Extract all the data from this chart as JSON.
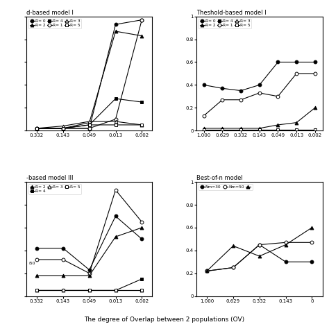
{
  "panels": {
    "tl": {
      "title": "d-based model I",
      "x_labels": [
        "0.332",
        "0.143",
        "0.049",
        "0.013",
        "0.002"
      ],
      "ylim": [
        0,
        1
      ],
      "show_y_labels": false,
      "legend_row1": [
        {
          "label": "R= 0",
          "marker": "o",
          "filled": true
        },
        {
          "label": "R= 2",
          "marker": "^",
          "filled": true
        },
        {
          "label": "R= 4",
          "marker": "s",
          "filled": true
        }
      ],
      "legend_row2": [
        {
          "label": "R= 1",
          "marker": "o",
          "filled": false
        },
        {
          "label": "R= 3",
          "marker": "^",
          "filled": false
        },
        {
          "label": "R= 5",
          "marker": "s",
          "filled": false
        }
      ],
      "series": [
        {
          "marker": "o",
          "filled": true,
          "data": [
            0.02,
            0.02,
            0.02,
            0.93,
            0.97
          ]
        },
        {
          "marker": "o",
          "filled": false,
          "data": [
            0.02,
            0.02,
            0.02,
            0.1,
            0.97
          ]
        },
        {
          "marker": "^",
          "filled": true,
          "data": [
            0.02,
            0.02,
            0.07,
            0.87,
            0.83
          ]
        },
        {
          "marker": "^",
          "filled": false,
          "data": [
            0.02,
            0.04,
            0.08,
            0.08,
            0.05
          ]
        },
        {
          "marker": "s",
          "filled": true,
          "data": [
            0.02,
            0.02,
            0.05,
            0.28,
            0.25
          ]
        },
        {
          "marker": "s",
          "filled": false,
          "data": [
            0.02,
            0.02,
            0.05,
            0.05,
            0.05
          ]
        }
      ]
    },
    "tr": {
      "title": "Theshold-based model I",
      "x_labels": [
        "1.000",
        "0.629",
        "0.332",
        "0.143",
        "0.049",
        "0.013",
        "0.002"
      ],
      "ylim": [
        0,
        1
      ],
      "show_y_labels": true,
      "legend_row1": [
        {
          "label": "R= 0",
          "marker": "o",
          "filled": true
        },
        {
          "label": "R= 2",
          "marker": "^",
          "filled": true
        },
        {
          "label": "R= 4",
          "marker": "s",
          "filled": true
        }
      ],
      "legend_row2": [
        {
          "label": "R= 1",
          "marker": "o",
          "filled": false
        },
        {
          "label": "R= 3",
          "marker": "^",
          "filled": false
        },
        {
          "label": "R= 5",
          "marker": "s",
          "filled": false
        }
      ],
      "series": [
        {
          "marker": "o",
          "filled": true,
          "data": [
            0.4,
            0.37,
            0.35,
            0.4,
            0.6,
            0.6,
            0.6
          ]
        },
        {
          "marker": "o",
          "filled": false,
          "data": [
            0.13,
            0.27,
            0.27,
            0.33,
            0.3,
            0.5,
            0.5
          ]
        },
        {
          "marker": "^",
          "filled": true,
          "data": [
            0.02,
            0.02,
            0.02,
            0.02,
            0.05,
            0.07,
            0.2
          ]
        },
        {
          "marker": "^",
          "filled": false,
          "data": [
            0.01,
            0.01,
            0.01,
            0.01,
            0.01,
            0.01,
            0.01
          ]
        },
        {
          "marker": "s",
          "filled": true,
          "data": [
            0.01,
            0.01,
            0.01,
            0.01,
            0.01,
            0.01,
            0.01
          ]
        },
        {
          "marker": "s",
          "filled": false,
          "data": [
            0.01,
            0.01,
            0.01,
            0.01,
            0.01,
            0.01,
            0.01
          ]
        }
      ]
    },
    "bl": {
      "title": "-based model III",
      "x_labels": [
        "0.332",
        "0.143",
        "0.049",
        "0.013",
        "0.002"
      ],
      "ylim": [
        0,
        1
      ],
      "show_y_labels": false,
      "legend_row1": [
        {
          "label": "R= 2",
          "marker": "^",
          "filled": true
        },
        {
          "label": "R= 4",
          "marker": "s",
          "filled": true
        }
      ],
      "legend_row2": [
        {
          "label": "R= 3",
          "marker": "^",
          "filled": false
        },
        {
          "label": "R= 5",
          "marker": "s",
          "filled": false
        }
      ],
      "legend_extra": "i50",
      "series": [
        {
          "marker": "o",
          "filled": true,
          "data": [
            0.42,
            0.42,
            0.23,
            0.7,
            0.5
          ]
        },
        {
          "marker": "o",
          "filled": false,
          "data": [
            0.32,
            0.32,
            0.2,
            0.93,
            0.65
          ]
        },
        {
          "marker": "^",
          "filled": true,
          "data": [
            0.18,
            0.18,
            0.18,
            0.52,
            0.6
          ]
        },
        {
          "marker": "^",
          "filled": false,
          "data": [
            0.05,
            0.05,
            0.05,
            0.05,
            0.05
          ]
        },
        {
          "marker": "s",
          "filled": true,
          "data": [
            0.05,
            0.05,
            0.05,
            0.05,
            0.15
          ]
        },
        {
          "marker": "s",
          "filled": false,
          "data": [
            0.05,
            0.05,
            0.05,
            0.05,
            0.05
          ]
        }
      ]
    },
    "br": {
      "title": "Best-of-n model",
      "x_labels": [
        "1.000",
        "0.629",
        "0.332",
        "0.143",
        "0"
      ],
      "ylim": [
        0,
        1
      ],
      "show_y_labels": true,
      "legend_row1": [
        {
          "label": "Nm=30",
          "marker": "o",
          "filled": true
        },
        {
          "label": "Nm=50",
          "marker": "o",
          "filled": false
        },
        {
          "label": "",
          "marker": "^",
          "filled": true
        }
      ],
      "series": [
        {
          "marker": "o",
          "filled": true,
          "data": [
            0.22,
            0.25,
            0.45,
            0.3,
            0.3
          ]
        },
        {
          "marker": "o",
          "filled": false,
          "data": [
            0.22,
            0.25,
            0.45,
            0.47,
            0.47
          ]
        },
        {
          "marker": "^",
          "filled": true,
          "data": [
            0.22,
            0.44,
            0.35,
            0.45,
            0.6
          ]
        }
      ]
    }
  },
  "xlabel": "The degree of Overlap between 2 populations (OV)",
  "background": "#ffffff"
}
